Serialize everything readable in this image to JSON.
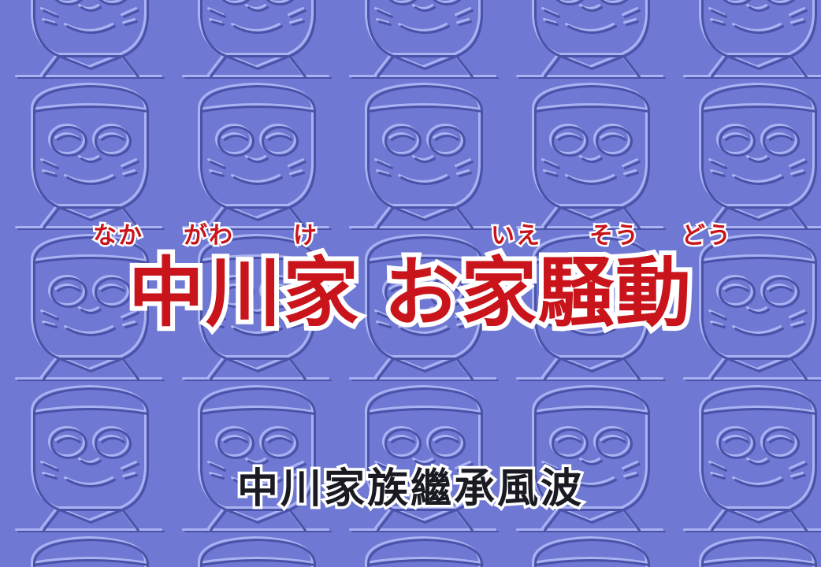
{
  "background": {
    "color": "#6f79d3",
    "pattern_icon": "embossed-cartoon-face-icon"
  },
  "title": {
    "part1": "中川家",
    "part2": "お家騒動",
    "ruby": [
      "なか",
      "がわ",
      "け",
      "いえ",
      "そう",
      "どう"
    ],
    "color": "#c8141a"
  },
  "subtitle": "中川家族繼承風波"
}
